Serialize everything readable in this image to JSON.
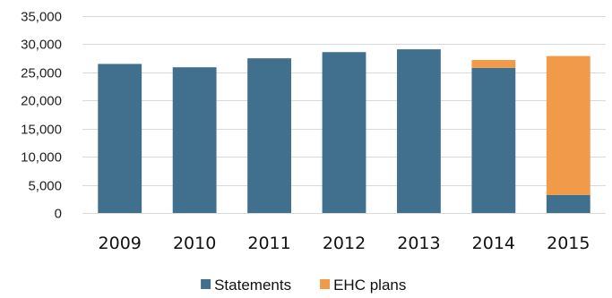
{
  "chart_data": {
    "type": "bar",
    "stacked": true,
    "categories": [
      "2009",
      "2010",
      "2011",
      "2012",
      "2013",
      "2014",
      "2015"
    ],
    "series": [
      {
        "name": "Statements",
        "color": "#41708F",
        "values": [
          26500,
          25900,
          27500,
          28600,
          29100,
          25800,
          3200
        ]
      },
      {
        "name": "EHC plans",
        "color": "#F09A4A",
        "values": [
          0,
          0,
          0,
          0,
          0,
          1400,
          24700
        ]
      }
    ],
    "ylim": [
      0,
      35000
    ],
    "yticks": [
      0,
      5000,
      10000,
      15000,
      20000,
      25000,
      30000,
      35000
    ],
    "ytick_labels": [
      "0",
      "5,000",
      "10,000",
      "15,000",
      "20,000",
      "25,000",
      "30,000",
      "35,000"
    ],
    "grid": true,
    "legend_position": "bottom-center"
  }
}
